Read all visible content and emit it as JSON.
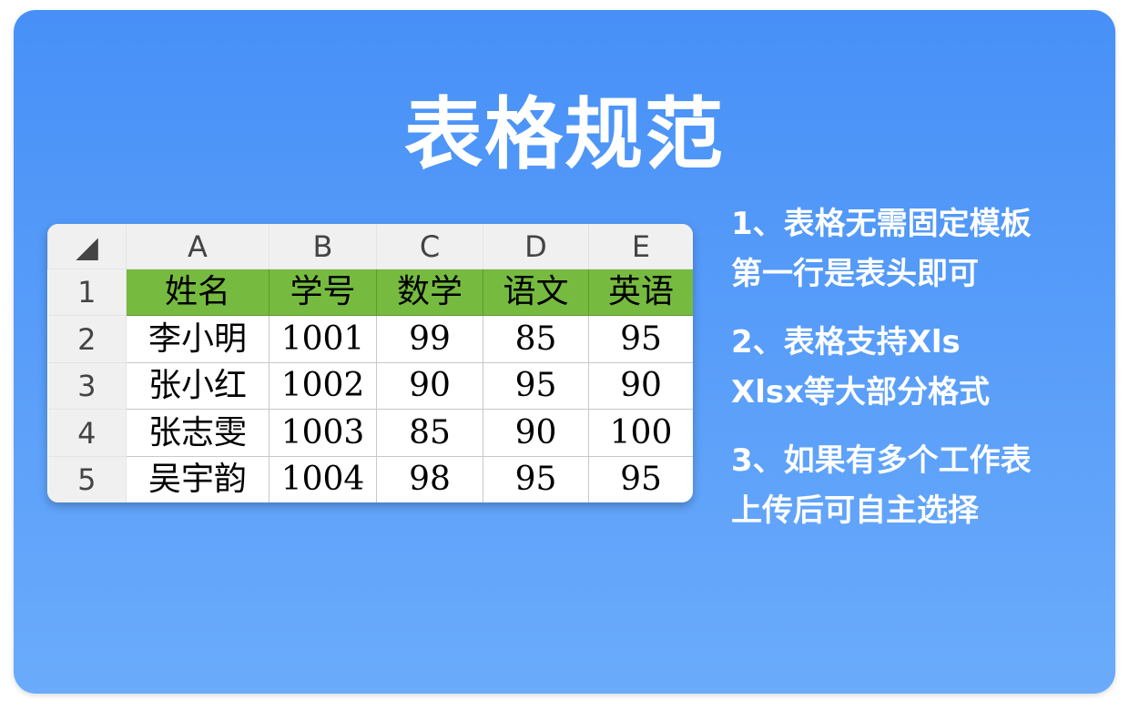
{
  "title": "表格规范",
  "sheet": {
    "corner_icon": "select-all-triangle-icon",
    "columns": [
      "A",
      "B",
      "C",
      "D",
      "E"
    ],
    "row_numbers": [
      "1",
      "2",
      "3",
      "4",
      "5"
    ],
    "header": [
      "姓名",
      "学号",
      "数学",
      "语文",
      "英语"
    ],
    "rows": [
      [
        "李小明",
        "1001",
        "99",
        "85",
        "95"
      ],
      [
        "张小红",
        "1002",
        "90",
        "95",
        "90"
      ],
      [
        "张志雯",
        "1003",
        "85",
        "90",
        "100"
      ],
      [
        "吴宇韵",
        "1004",
        "98",
        "95",
        "95"
      ]
    ],
    "header_color": "#76bb40"
  },
  "notes": [
    {
      "line1": "1、表格无需固定模板",
      "line2": "第一行是表头即可"
    },
    {
      "line1": "2、表格支持Xls",
      "line2": "Xlsx等大部分格式"
    },
    {
      "line1": "3、如果有多个工作表",
      "line2": "上传后可自主选择"
    }
  ],
  "colors": {
    "background_top": "#4790f7",
    "background_bottom": "#6aabfb"
  }
}
